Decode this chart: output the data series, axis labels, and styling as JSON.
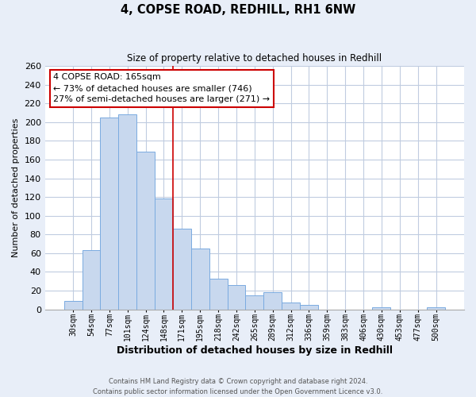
{
  "title": "4, COPSE ROAD, REDHILL, RH1 6NW",
  "subtitle": "Size of property relative to detached houses in Redhill",
  "xlabel": "Distribution of detached houses by size in Redhill",
  "ylabel": "Number of detached properties",
  "bar_color": "#c8d8ee",
  "bar_edge_color": "#7aabe0",
  "background_color": "#e8eef8",
  "plot_bg_color": "#ffffff",
  "grid_color": "#c0cce0",
  "categories": [
    "30sqm",
    "54sqm",
    "77sqm",
    "101sqm",
    "124sqm",
    "148sqm",
    "171sqm",
    "195sqm",
    "218sqm",
    "242sqm",
    "265sqm",
    "289sqm",
    "312sqm",
    "336sqm",
    "359sqm",
    "383sqm",
    "406sqm",
    "430sqm",
    "453sqm",
    "477sqm",
    "500sqm"
  ],
  "values": [
    9,
    63,
    205,
    208,
    168,
    118,
    86,
    65,
    33,
    26,
    15,
    18,
    7,
    5,
    0,
    0,
    0,
    2,
    0,
    0,
    2
  ],
  "ylim": [
    0,
    260
  ],
  "yticks": [
    0,
    20,
    40,
    60,
    80,
    100,
    120,
    140,
    160,
    180,
    200,
    220,
    240,
    260
  ],
  "property_label": "4 COPSE ROAD: 165sqm",
  "smaller_pct": 73,
  "smaller_count": 746,
  "larger_pct": 27,
  "larger_count": 271,
  "vline_bin_index": 6,
  "vline_color": "#cc0000",
  "annotation_box_color": "#ffffff",
  "annotation_box_edge": "#cc0000",
  "footnote1": "Contains HM Land Registry data © Crown copyright and database right 2024.",
  "footnote2": "Contains public sector information licensed under the Open Government Licence v3.0."
}
